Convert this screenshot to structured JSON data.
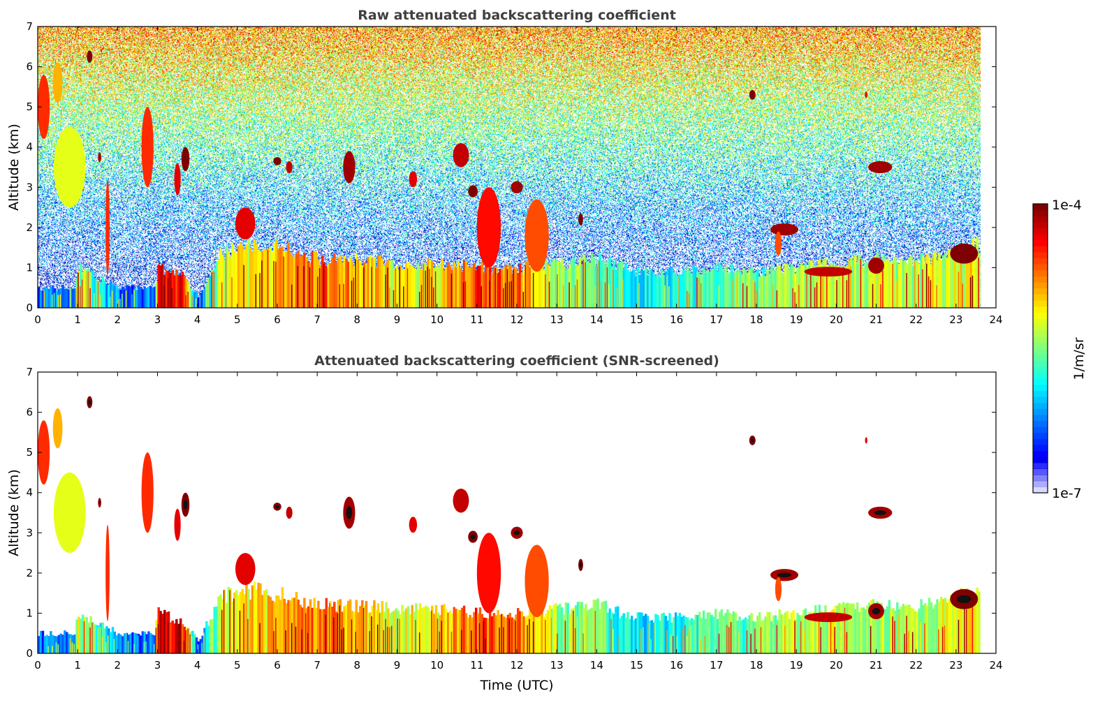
{
  "chart_data": [
    {
      "type": "heatmap",
      "title": "Raw attenuated backscattering coefficient",
      "xlabel": "",
      "ylabel": "Altitude (km)",
      "xlim": [
        0,
        24
      ],
      "ylim": [
        0,
        7
      ],
      "xticks": [
        "0",
        "1",
        "2",
        "3",
        "4",
        "5",
        "6",
        "7",
        "8",
        "9",
        "10",
        "11",
        "12",
        "13",
        "14",
        "15",
        "16",
        "17",
        "18",
        "19",
        "20",
        "21",
        "22",
        "23",
        "24"
      ],
      "yticks": [
        "0",
        "1",
        "2",
        "3",
        "4",
        "5",
        "6",
        "7"
      ],
      "screened": false,
      "data_end_time": 23.6
    },
    {
      "type": "heatmap",
      "title": "Attenuated backscattering coefficient (SNR-screened)",
      "xlabel": "Time (UTC)",
      "ylabel": "Altitude (km)",
      "xlim": [
        0,
        24
      ],
      "ylim": [
        0,
        7
      ],
      "xticks": [
        "0",
        "1",
        "2",
        "3",
        "4",
        "5",
        "6",
        "7",
        "8",
        "9",
        "10",
        "11",
        "12",
        "13",
        "14",
        "15",
        "16",
        "17",
        "18",
        "19",
        "20",
        "21",
        "22",
        "23",
        "24"
      ],
      "yticks": [
        "0",
        "1",
        "2",
        "3",
        "4",
        "5",
        "6",
        "7"
      ],
      "screened": true,
      "data_end_time": 23.6
    }
  ],
  "colorbar": {
    "label": "1/m/sr",
    "min_label": "1e-7",
    "max_label": "1e-4",
    "log10_range": [
      -7,
      -4
    ],
    "colormap": "jet"
  },
  "boundary_layer": {
    "time": [
      0,
      0.9,
      1.0,
      2.0,
      2.9,
      3.0,
      3.6,
      4.0,
      4.5,
      5.0,
      6.0,
      7.0,
      8.0,
      9.0,
      10.0,
      11.0,
      12.0,
      13.0,
      14.0,
      15.0,
      16.0,
      17.0,
      18.0,
      19.0,
      20.0,
      21.0,
      22.0,
      23.0,
      23.6
    ],
    "top_km": [
      0.5,
      0.5,
      1.0,
      0.5,
      0.5,
      1.0,
      0.8,
      0.3,
      1.3,
      1.6,
      1.5,
      1.2,
      1.2,
      1.1,
      1.1,
      1.0,
      1.0,
      1.1,
      1.2,
      0.9,
      0.9,
      1.0,
      0.9,
      1.0,
      1.1,
      1.2,
      1.15,
      1.4,
      1.6
    ],
    "log10_value": [
      -6.3,
      -6.3,
      -5.3,
      -6.3,
      -6.3,
      -4.2,
      -4.4,
      -6.4,
      -5.3,
      -5.1,
      -5.0,
      -4.7,
      -4.9,
      -5.2,
      -5.1,
      -4.6,
      -4.7,
      -5.4,
      -5.6,
      -5.9,
      -5.8,
      -5.6,
      -5.6,
      -5.4,
      -5.3,
      -5.3,
      -5.4,
      -5.2,
      -5.1
    ]
  },
  "features": [
    {
      "t": 0.15,
      "z": 5.0,
      "dt": 0.15,
      "dz": 0.8,
      "v": -4.5
    },
    {
      "t": 0.5,
      "z": 5.6,
      "dt": 0.12,
      "dz": 0.5,
      "v": -4.9
    },
    {
      "t": 0.8,
      "z": 3.5,
      "dt": 0.4,
      "dz": 1.0,
      "v": -5.2
    },
    {
      "t": 1.3,
      "z": 6.25,
      "dt": 0.07,
      "dz": 0.15,
      "v": -4.0
    },
    {
      "t": 1.55,
      "z": 3.75,
      "dt": 0.04,
      "dz": 0.12,
      "v": -4.1
    },
    {
      "t": 1.75,
      "z": 2.0,
      "dt": 0.05,
      "dz": 1.2,
      "v": -4.5
    },
    {
      "t": 2.75,
      "z": 4.0,
      "dt": 0.15,
      "dz": 1.0,
      "v": -4.5
    },
    {
      "t": 3.7,
      "z": 3.7,
      "dt": 0.1,
      "dz": 0.3,
      "v": -4.0
    },
    {
      "t": 3.5,
      "z": 3.2,
      "dt": 0.08,
      "dz": 0.4,
      "v": -4.3
    },
    {
      "t": 5.2,
      "z": 2.1,
      "dt": 0.25,
      "dz": 0.4,
      "v": -4.3
    },
    {
      "t": 6.0,
      "z": 3.65,
      "dt": 0.1,
      "dz": 0.1,
      "v": -4.0
    },
    {
      "t": 6.3,
      "z": 3.5,
      "dt": 0.08,
      "dz": 0.15,
      "v": -4.2
    },
    {
      "t": 7.8,
      "z": 3.5,
      "dt": 0.15,
      "dz": 0.4,
      "v": -4.1
    },
    {
      "t": 9.4,
      "z": 3.2,
      "dt": 0.1,
      "dz": 0.2,
      "v": -4.3
    },
    {
      "t": 10.6,
      "z": 3.8,
      "dt": 0.2,
      "dz": 0.3,
      "v": -4.2
    },
    {
      "t": 10.9,
      "z": 2.9,
      "dt": 0.12,
      "dz": 0.15,
      "v": -4.0
    },
    {
      "t": 11.3,
      "z": 2.0,
      "dt": 0.3,
      "dz": 1.0,
      "v": -4.4
    },
    {
      "t": 12.0,
      "z": 3.0,
      "dt": 0.15,
      "dz": 0.15,
      "v": -4.1
    },
    {
      "t": 12.5,
      "z": 1.8,
      "dt": 0.3,
      "dz": 0.9,
      "v": -4.6
    },
    {
      "t": 13.6,
      "z": 2.2,
      "dt": 0.06,
      "dz": 0.15,
      "v": -4.0
    },
    {
      "t": 17.9,
      "z": 5.3,
      "dt": 0.08,
      "dz": 0.12,
      "v": -4.0
    },
    {
      "t": 18.7,
      "z": 1.95,
      "dt": 0.35,
      "dz": 0.15,
      "v": -4.1
    },
    {
      "t": 18.55,
      "z": 1.6,
      "dt": 0.08,
      "dz": 0.3,
      "v": -4.6
    },
    {
      "t": 20.75,
      "z": 5.3,
      "dt": 0.03,
      "dz": 0.08,
      "v": -4.3
    },
    {
      "t": 21.1,
      "z": 3.5,
      "dt": 0.3,
      "dz": 0.15,
      "v": -4.1
    },
    {
      "t": 19.8,
      "z": 0.9,
      "dt": 0.6,
      "dz": 0.12,
      "v": -4.2
    },
    {
      "t": 21.0,
      "z": 1.05,
      "dt": 0.2,
      "dz": 0.2,
      "v": -4.1
    },
    {
      "t": 23.2,
      "z": 1.35,
      "dt": 0.35,
      "dz": 0.25,
      "v": -4.0
    }
  ]
}
